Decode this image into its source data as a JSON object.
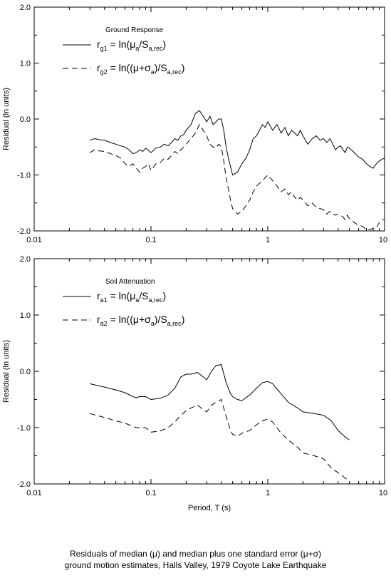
{
  "chart_data": [
    {
      "type": "line",
      "x_scale": "log",
      "xlim": [
        0.01,
        10
      ],
      "ylim": [
        -2.0,
        2.0
      ],
      "x_ticks": [
        "0.01",
        "0.1",
        "1",
        "10"
      ],
      "y_ticks": [
        "2.0",
        "1.0",
        "0.0",
        "-1.0",
        "-2.0"
      ],
      "xlabel": "",
      "ylabel": "Residual (ln units)",
      "legend_title": "Ground Response",
      "legend_placement": "top-left",
      "series": [
        {
          "name": "r_g1 = ln(μ_a/S_a,rec)",
          "legend": {
            "sym": "r",
            "sub": "g1",
            "pre": "= ln(",
            "mid_sym": "μ",
            "mid_sub": "a",
            "post": "/S",
            "post_sub": "a,rec",
            "end": ")"
          },
          "style": "solid",
          "x": [
            0.03,
            0.033,
            0.036,
            0.04,
            0.045,
            0.05,
            0.055,
            0.06,
            0.065,
            0.07,
            0.075,
            0.08,
            0.085,
            0.09,
            0.095,
            0.1,
            0.11,
            0.12,
            0.13,
            0.14,
            0.15,
            0.16,
            0.17,
            0.18,
            0.19,
            0.2,
            0.22,
            0.24,
            0.26,
            0.28,
            0.3,
            0.32,
            0.34,
            0.36,
            0.38,
            0.4,
            0.42,
            0.44,
            0.46,
            0.48,
            0.5,
            0.55,
            0.6,
            0.65,
            0.7,
            0.75,
            0.8,
            0.85,
            0.9,
            0.95,
            1.0,
            1.1,
            1.2,
            1.3,
            1.4,
            1.5,
            1.6,
            1.7,
            1.8,
            1.9,
            2.0,
            2.2,
            2.4,
            2.6,
            2.8,
            3.0,
            3.2,
            3.4,
            3.6,
            3.8,
            4.0,
            4.2,
            4.4,
            4.6,
            4.8,
            5.0,
            5.5,
            6.0,
            6.5,
            7.0,
            7.5,
            8.0,
            8.5,
            9.0,
            9.5,
            10.0
          ],
          "values": [
            -0.38,
            -0.35,
            -0.37,
            -0.38,
            -0.42,
            -0.45,
            -0.48,
            -0.5,
            -0.55,
            -0.62,
            -0.6,
            -0.55,
            -0.58,
            -0.52,
            -0.56,
            -0.6,
            -0.52,
            -0.5,
            -0.45,
            -0.48,
            -0.42,
            -0.35,
            -0.38,
            -0.3,
            -0.28,
            -0.2,
            -0.1,
            0.1,
            0.15,
            0.05,
            -0.05,
            0.05,
            -0.1,
            -0.05,
            0.0,
            0.0,
            -0.2,
            -0.5,
            -0.7,
            -0.85,
            -1.0,
            -0.95,
            -0.8,
            -0.7,
            -0.55,
            -0.35,
            -0.3,
            -0.2,
            -0.1,
            -0.15,
            -0.05,
            -0.2,
            -0.1,
            -0.25,
            -0.15,
            -0.3,
            -0.2,
            -0.25,
            -0.3,
            -0.2,
            -0.3,
            -0.45,
            -0.35,
            -0.3,
            -0.38,
            -0.35,
            -0.42,
            -0.35,
            -0.45,
            -0.55,
            -0.5,
            -0.48,
            -0.55,
            -0.6,
            -0.5,
            -0.52,
            -0.6,
            -0.68,
            -0.72,
            -0.8,
            -0.85,
            -0.88,
            -0.8,
            -0.75,
            -0.72,
            -0.7
          ]
        },
        {
          "name": "r_g2 = ln((μ+σ)_a/S_a,rec)",
          "legend": {
            "sym": "r",
            "sub": "g2",
            "pre": "= ln((",
            "mid_sym": "μ+σ",
            "mid_sub": "a",
            "post": ")/S",
            "post_sub": "a,rec",
            "end": ")"
          },
          "style": "dashed",
          "x": [
            0.03,
            0.033,
            0.036,
            0.04,
            0.045,
            0.05,
            0.055,
            0.06,
            0.065,
            0.07,
            0.075,
            0.08,
            0.085,
            0.09,
            0.095,
            0.1,
            0.11,
            0.12,
            0.13,
            0.14,
            0.15,
            0.16,
            0.17,
            0.18,
            0.19,
            0.2,
            0.22,
            0.24,
            0.26,
            0.28,
            0.3,
            0.32,
            0.34,
            0.36,
            0.38,
            0.4,
            0.42,
            0.44,
            0.46,
            0.48,
            0.5,
            0.55,
            0.6,
            0.65,
            0.7,
            0.75,
            0.8,
            0.85,
            0.9,
            0.95,
            1.0,
            1.1,
            1.2,
            1.3,
            1.4,
            1.5,
            1.6,
            1.7,
            1.8,
            1.9,
            2.0,
            2.2,
            2.4,
            2.6,
            2.8,
            3.0,
            3.2,
            3.4,
            3.6,
            3.8,
            4.0,
            4.2,
            4.4,
            4.6,
            4.8,
            5.0,
            5.5,
            6.0,
            6.5,
            7.0,
            7.5,
            8.0,
            8.5,
            9.0,
            9.5,
            10.0
          ],
          "values": [
            -0.6,
            -0.55,
            -0.57,
            -0.58,
            -0.62,
            -0.65,
            -0.7,
            -0.8,
            -0.85,
            -0.8,
            -0.88,
            -0.95,
            -0.88,
            -0.85,
            -0.8,
            -0.92,
            -0.8,
            -0.78,
            -0.7,
            -0.72,
            -0.65,
            -0.58,
            -0.62,
            -0.55,
            -0.5,
            -0.45,
            -0.35,
            -0.25,
            -0.1,
            -0.2,
            -0.3,
            -0.45,
            -0.5,
            -0.52,
            -0.45,
            -0.5,
            -0.75,
            -1.05,
            -1.25,
            -1.45,
            -1.6,
            -1.7,
            -1.65,
            -1.55,
            -1.45,
            -1.3,
            -1.2,
            -1.15,
            -1.1,
            -1.05,
            -1.0,
            -1.1,
            -1.2,
            -1.3,
            -1.25,
            -1.35,
            -1.3,
            -1.4,
            -1.45,
            -1.4,
            -1.45,
            -1.55,
            -1.5,
            -1.58,
            -1.6,
            -1.62,
            -1.7,
            -1.65,
            -1.7,
            -1.72,
            -1.7,
            -1.72,
            -1.75,
            -1.8,
            -1.72,
            -1.78,
            -1.85,
            -1.9,
            -1.92,
            -1.98,
            -1.98,
            -1.95,
            -1.95,
            -1.85,
            -1.8,
            -1.8
          ]
        }
      ]
    },
    {
      "type": "line",
      "x_scale": "log",
      "xlim": [
        0.01,
        10
      ],
      "ylim": [
        -2.0,
        2.0
      ],
      "x_ticks": [
        "0.01",
        "0.1",
        "1",
        "10"
      ],
      "y_ticks": [
        "2.0",
        "1.0",
        "0.0",
        "-1.0",
        "-2.0"
      ],
      "xlabel": "Period, T (s)",
      "ylabel": "Residual (ln units)",
      "legend_title": "Soil Attenuation",
      "legend_placement": "top-left",
      "series": [
        {
          "name": "r_a1 = ln(μ_a/S_a,rec)",
          "legend": {
            "sym": "r",
            "sub": "a1",
            "pre": "= ln(",
            "mid_sym": "μ",
            "mid_sub": "a",
            "post": "/S",
            "post_sub": "a,rec",
            "end": ")"
          },
          "style": "solid",
          "x": [
            0.03,
            0.04,
            0.05,
            0.06,
            0.07,
            0.075,
            0.08,
            0.09,
            0.1,
            0.12,
            0.14,
            0.16,
            0.18,
            0.2,
            0.22,
            0.25,
            0.28,
            0.3,
            0.33,
            0.36,
            0.4,
            0.44,
            0.48,
            0.5,
            0.55,
            0.6,
            0.7,
            0.8,
            0.9,
            1.0,
            1.1,
            1.3,
            1.5,
            1.8,
            2.0,
            2.5,
            3.0,
            3.5,
            4.0,
            4.5,
            5.0
          ],
          "values": [
            -0.22,
            -0.28,
            -0.33,
            -0.38,
            -0.45,
            -0.47,
            -0.45,
            -0.45,
            -0.5,
            -0.48,
            -0.42,
            -0.3,
            -0.1,
            -0.05,
            -0.05,
            -0.02,
            -0.1,
            -0.15,
            0.0,
            0.1,
            0.12,
            -0.2,
            -0.4,
            -0.45,
            -0.5,
            -0.52,
            -0.42,
            -0.3,
            -0.2,
            -0.18,
            -0.22,
            -0.4,
            -0.55,
            -0.65,
            -0.72,
            -0.75,
            -0.78,
            -0.88,
            -1.05,
            -1.15,
            -1.22
          ]
        },
        {
          "name": "r_a2 = ln((μ+σ)_a/S_a,rec)",
          "legend": {
            "sym": "r",
            "sub": "a2",
            "pre": "= ln((",
            "mid_sym": "μ+σ",
            "mid_sub": "a",
            "post": ")/S",
            "post_sub": "a,rec",
            "end": ")"
          },
          "style": "dashed",
          "x": [
            0.03,
            0.04,
            0.05,
            0.06,
            0.07,
            0.075,
            0.08,
            0.09,
            0.1,
            0.12,
            0.14,
            0.16,
            0.18,
            0.2,
            0.22,
            0.25,
            0.28,
            0.3,
            0.33,
            0.36,
            0.4,
            0.44,
            0.48,
            0.5,
            0.55,
            0.6,
            0.7,
            0.8,
            0.9,
            1.0,
            1.1,
            1.3,
            1.5,
            1.8,
            2.0,
            2.5,
            3.0,
            3.5,
            4.0,
            4.5,
            5.0
          ],
          "values": [
            -0.75,
            -0.82,
            -0.88,
            -0.92,
            -0.98,
            -1.0,
            -1.0,
            -1.0,
            -1.08,
            -1.06,
            -1.0,
            -0.9,
            -0.78,
            -0.7,
            -0.65,
            -0.6,
            -0.68,
            -0.72,
            -0.6,
            -0.55,
            -0.5,
            -0.8,
            -1.05,
            -1.12,
            -1.15,
            -1.1,
            -1.05,
            -0.95,
            -0.88,
            -0.85,
            -0.9,
            -1.1,
            -1.22,
            -1.35,
            -1.45,
            -1.5,
            -1.55,
            -1.72,
            -1.8,
            -1.88,
            -1.95
          ]
        }
      ]
    }
  ],
  "caption": {
    "line1": "Residuals of median (μ) and median plus one standard error (μ+σ)",
    "line2": "ground motion estimates, Halls Valley, 1979 Coyote Lake Earthquake"
  }
}
